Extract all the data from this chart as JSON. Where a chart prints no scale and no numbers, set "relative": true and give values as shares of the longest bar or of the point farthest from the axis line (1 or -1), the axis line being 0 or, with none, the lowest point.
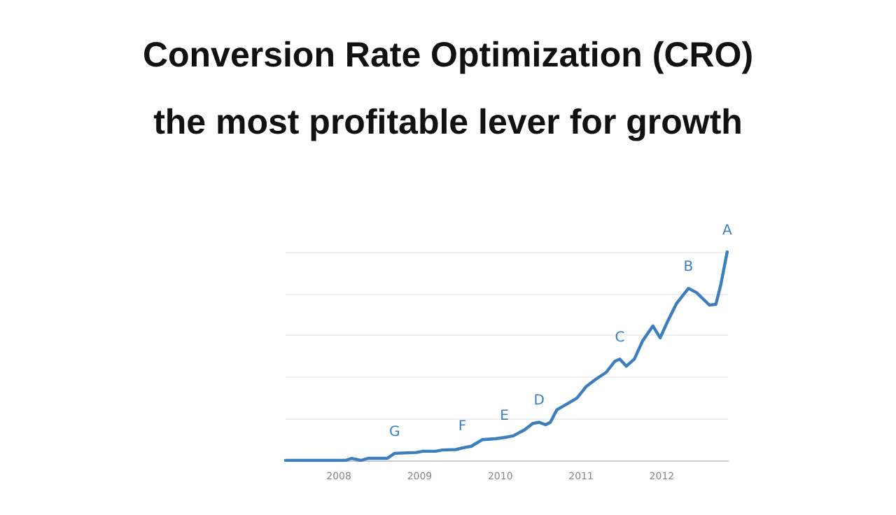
{
  "chart_data": {
    "type": "line",
    "title": "Conversion Rate Optimization (CRO)",
    "subtitle": "the most profitable lever for growth",
    "relative": true,
    "grid": "y",
    "marker": "none",
    "line_style": "solid",
    "xlim": [
      2007.34,
      2012.82
    ],
    "xticks": [
      2008,
      2009,
      2010,
      2011,
      2012
    ],
    "series": [
      {
        "color": "#3d7ebf",
        "x": [
          2007.34,
          2008.08,
          2008.16,
          2008.27,
          2008.36,
          2008.6,
          2008.69,
          2008.96,
          2009.04,
          2009.2,
          2009.28,
          2009.45,
          2009.53,
          2009.64,
          2009.78,
          2009.94,
          2010.05,
          2010.16,
          2010.3,
          2010.4,
          2010.48,
          2010.56,
          2010.62,
          2010.7,
          2010.81,
          2010.95,
          2011.06,
          2011.17,
          2011.31,
          2011.42,
          2011.48,
          2011.56,
          2011.66,
          2011.76,
          2011.89,
          2011.98,
          2012.07,
          2012.18,
          2012.33,
          2012.43,
          2012.59,
          2012.67,
          2012.73,
          2012.81
        ],
        "values": [
          0,
          0,
          0.01,
          0,
          0.01,
          0.01,
          0.034,
          0.038,
          0.044,
          0.044,
          0.05,
          0.052,
          0.06,
          0.068,
          0.1,
          0.104,
          0.11,
          0.118,
          0.147,
          0.177,
          0.183,
          0.171,
          0.183,
          0.243,
          0.267,
          0.299,
          0.353,
          0.386,
          0.422,
          0.476,
          0.486,
          0.452,
          0.486,
          0.572,
          0.645,
          0.588,
          0.665,
          0.751,
          0.825,
          0.805,
          0.745,
          0.749,
          0.841,
          1.0
        ]
      }
    ],
    "annotations": [
      {
        "text": "A",
        "x": 2012.81,
        "y": 1.0
      },
      {
        "text": "B",
        "x": 2012.33,
        "y": 0.825
      },
      {
        "text": "C",
        "x": 2011.48,
        "y": 0.486
      },
      {
        "text": "D",
        "x": 2010.48,
        "y": 0.183
      },
      {
        "text": "E",
        "x": 2010.05,
        "y": 0.11
      },
      {
        "text": "F",
        "x": 2009.53,
        "y": 0.06
      },
      {
        "text": "G",
        "x": 2008.69,
        "y": 0.034
      }
    ]
  }
}
